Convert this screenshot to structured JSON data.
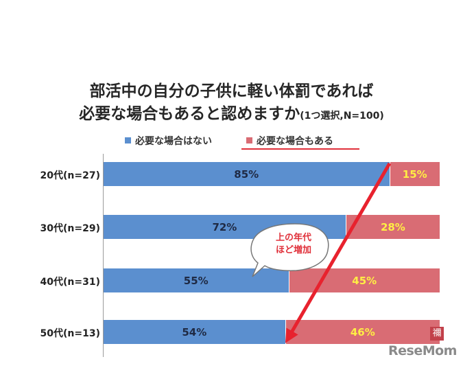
{
  "chart_data": {
    "type": "bar",
    "stacked": true,
    "orientation": "horizontal",
    "title_line1": "部活中の自分の子供に軽い体罰であれば",
    "title_line2": "必要な場合もあると認めますか",
    "title_note": "(1つ選択,N=100)",
    "categories": [
      "20代(n=27)",
      "30代(n=29)",
      "40代(n=31)",
      "50代(n=13)"
    ],
    "series": [
      {
        "name": "必要な場合はない",
        "values": [
          85,
          72,
          55,
          54
        ],
        "labels": [
          "85%",
          "72%",
          "55%",
          "54%"
        ],
        "color": "#5b8fcf"
      },
      {
        "name": "必要な場合もある",
        "values": [
          15,
          28,
          45,
          46
        ],
        "labels": [
          "15%",
          "28%",
          "45%",
          "46%"
        ],
        "color": "#d96c74"
      }
    ],
    "xlim": [
      0,
      100
    ],
    "legend_position": "top",
    "annotation": {
      "line1": "上の年代",
      "line2": "ほど増加",
      "color": "#e0303a"
    }
  },
  "branding": {
    "logo_text": "ReseMom",
    "stamp_text": "禰"
  }
}
